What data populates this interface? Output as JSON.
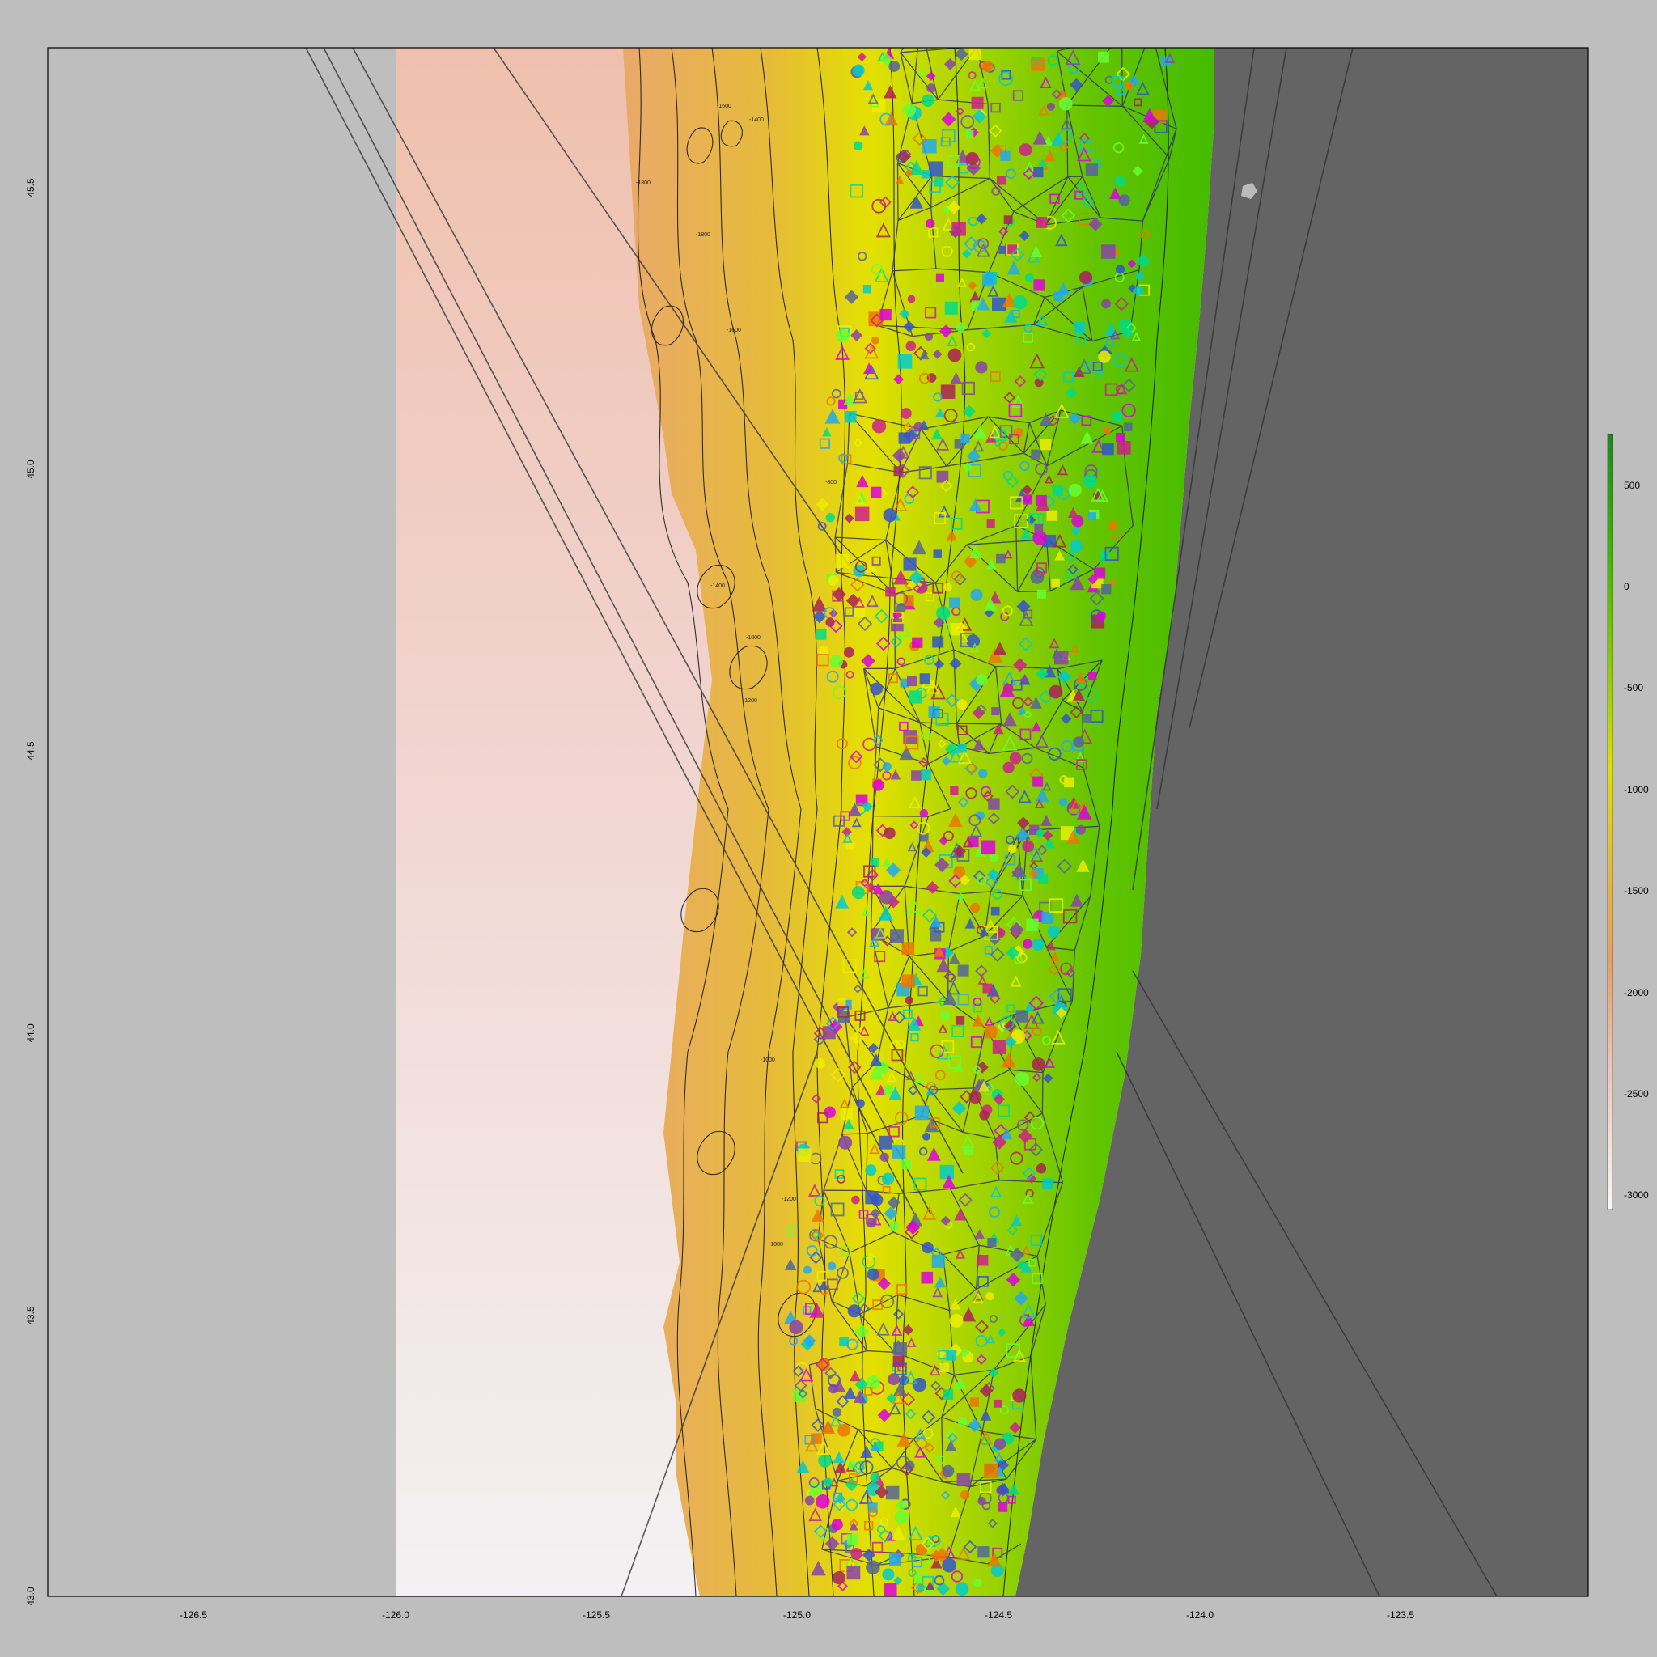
{
  "map": {
    "type": "bathymetry-map",
    "x_axis": {
      "ticks": [
        "-126.5",
        "-126.0",
        "-125.5",
        "-125.0",
        "-124.5",
        "-124.0",
        "-123.5"
      ]
    },
    "y_axis": {
      "ticks": [
        "43.0",
        "43.5",
        "44.0",
        "44.5",
        "45.0",
        "45.5"
      ]
    },
    "extent": {
      "lon_min": -126.86,
      "lon_max": -123.05,
      "lat_min": 43.0,
      "lat_max": 45.75
    },
    "ocean_raster_lon_min": -126.0,
    "legend": {
      "ticks": [
        "500",
        "0",
        "-500",
        "-1000",
        "-1500",
        "-2000",
        "-2500",
        "-3000"
      ],
      "range": [
        -3050,
        750
      ],
      "placement": "right"
    },
    "contour_labels": [
      "-1600",
      "-1400",
      "-1800",
      "-1800",
      "-1600",
      "-800",
      "-1400",
      "-1000",
      "-1200",
      "-1000",
      "-1200",
      "-1000"
    ],
    "colors": {
      "background": "#bebebe",
      "land": "#646464",
      "deep": "#f2f1f2",
      "abyss": "#f0cdc6",
      "slope": "#e8a868",
      "mid": "#e6c030",
      "shelf_edge": "#e0e000",
      "shelf": "#88cc00",
      "shallow": "#44bb00",
      "mesh": "#3a3a6e",
      "survey_lines": "#333333"
    },
    "symbol_colors": [
      "#3355cc",
      "#8844aa",
      "#cc2288",
      "#00cccc",
      "#00dd88",
      "#eeee00",
      "#ee7700",
      "#aa2255",
      "#556699",
      "#22aaee",
      "#66ff33",
      "#dd00dd"
    ]
  }
}
